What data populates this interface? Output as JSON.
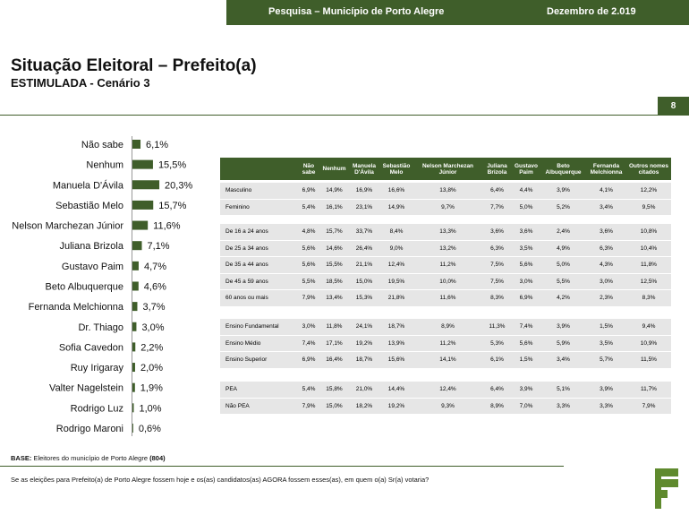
{
  "header": {
    "survey": "Pesquisa – Município de Porto Alegre",
    "date": "Dezembro de 2.019",
    "page": "8"
  },
  "title": "Situação Eleitoral – Prefeito(a)",
  "subtitle_bold": "ESTIMULADA -",
  "subtitle": "Cenário 3",
  "chart_data": {
    "type": "bar",
    "orientation": "horizontal",
    "color": "#3f5e2a",
    "categories": [
      "Não sabe",
      "Nenhum",
      "Manuela D'Ávila",
      "Sebastião Melo",
      "Nelson Marchezan Júnior",
      "Juliana Brizola",
      "Gustavo Paim",
      "Beto Albuquerque",
      "Fernanda Melchionna",
      "Dr. Thiago",
      "Sofia Cavedon",
      "Ruy Irigaray",
      "Valter Nagelstein",
      "Rodrigo Luz",
      "Rodrigo Maroni"
    ],
    "values": [
      6.1,
      15.5,
      20.3,
      15.7,
      11.6,
      7.1,
      4.7,
      4.6,
      3.7,
      3.0,
      2.2,
      2.0,
      1.9,
      1.0,
      0.6
    ],
    "value_labels": [
      "6,1%",
      "15,5%",
      "20,3%",
      "15,7%",
      "11,6%",
      "7,1%",
      "4,7%",
      "4,6%",
      "3,7%",
      "3,0%",
      "2,2%",
      "2,0%",
      "1,9%",
      "1,0%",
      "0,6%"
    ]
  },
  "table": {
    "columns": [
      "Não sabe",
      "Nenhum",
      "Manuela D'Ávila",
      "Sebastião Melo",
      "Nelson Marchezan Júnior",
      "Juliana Brizola",
      "Gustavo Paim",
      "Beto Albuquerque",
      "Fernanda Melchionna",
      "Outros nomes citados"
    ],
    "groups": [
      {
        "rows": [
          {
            "label": "Masculino",
            "cells": [
              "6,9%",
              "14,9%",
              "16,9%",
              "16,6%",
              "13,8%",
              "6,4%",
              "4,4%",
              "3,9%",
              "4,1%",
              "12,2%"
            ]
          },
          {
            "label": "Feminino",
            "cells": [
              "5,4%",
              "16,1%",
              "23,1%",
              "14,9%",
              "9,7%",
              "7,7%",
              "5,0%",
              "5,2%",
              "3,4%",
              "9,5%"
            ]
          }
        ]
      },
      {
        "rows": [
          {
            "label": "De 16 a 24 anos",
            "cells": [
              "4,8%",
              "15,7%",
              "33,7%",
              "8,4%",
              "13,3%",
              "3,6%",
              "3,6%",
              "2,4%",
              "3,6%",
              "10,8%"
            ]
          },
          {
            "label": "De 25 a 34 anos",
            "cells": [
              "5,6%",
              "14,6%",
              "26,4%",
              "9,0%",
              "13,2%",
              "6,3%",
              "3,5%",
              "4,9%",
              "6,3%",
              "10,4%"
            ]
          },
          {
            "label": "De 35 a 44 anos",
            "cells": [
              "5,6%",
              "15,5%",
              "21,1%",
              "12,4%",
              "11,2%",
              "7,5%",
              "5,6%",
              "5,0%",
              "4,3%",
              "11,8%"
            ]
          },
          {
            "label": "De 45 a 59 anos",
            "cells": [
              "5,5%",
              "18,5%",
              "15,0%",
              "19,5%",
              "10,0%",
              "7,5%",
              "3,0%",
              "5,5%",
              "3,0%",
              "12,5%"
            ]
          },
          {
            "label": "60 anos ou mais",
            "cells": [
              "7,9%",
              "13,4%",
              "15,3%",
              "21,8%",
              "11,6%",
              "8,3%",
              "6,9%",
              "4,2%",
              "2,3%",
              "8,3%"
            ]
          }
        ]
      },
      {
        "rows": [
          {
            "label": "Ensino Fundamental",
            "cells": [
              "3,0%",
              "11,8%",
              "24,1%",
              "18,7%",
              "8,9%",
              "11,3%",
              "7,4%",
              "3,9%",
              "1,5%",
              "9,4%"
            ]
          },
          {
            "label": "Ensino Médio",
            "cells": [
              "7,4%",
              "17,1%",
              "19,2%",
              "13,9%",
              "11,2%",
              "5,3%",
              "5,6%",
              "5,9%",
              "3,5%",
              "10,9%"
            ]
          },
          {
            "label": "Ensino Superior",
            "cells": [
              "6,9%",
              "16,4%",
              "18,7%",
              "15,6%",
              "14,1%",
              "6,1%",
              "1,5%",
              "3,4%",
              "5,7%",
              "11,5%"
            ]
          }
        ]
      },
      {
        "rows": [
          {
            "label": "PEA",
            "cells": [
              "5,4%",
              "15,8%",
              "21,0%",
              "14,4%",
              "12,4%",
              "6,4%",
              "3,9%",
              "5,1%",
              "3,9%",
              "11,7%"
            ]
          },
          {
            "label": "Não PEA",
            "cells": [
              "7,9%",
              "15,0%",
              "18,2%",
              "19,2%",
              "9,3%",
              "8,9%",
              "7,0%",
              "3,3%",
              "3,3%",
              "7,9%"
            ]
          }
        ]
      }
    ]
  },
  "footer": {
    "base_label": "BASE:",
    "base_text": "Eleitores do município de Porto Alegre",
    "base_n": "(804)",
    "question": "Se as eleições para Prefeito(a) de Porto Alegre fossem hoje e os(as) candidatos(as) AGORA fossem esses(as), em quem o(a) Sr(a) votaria?"
  }
}
